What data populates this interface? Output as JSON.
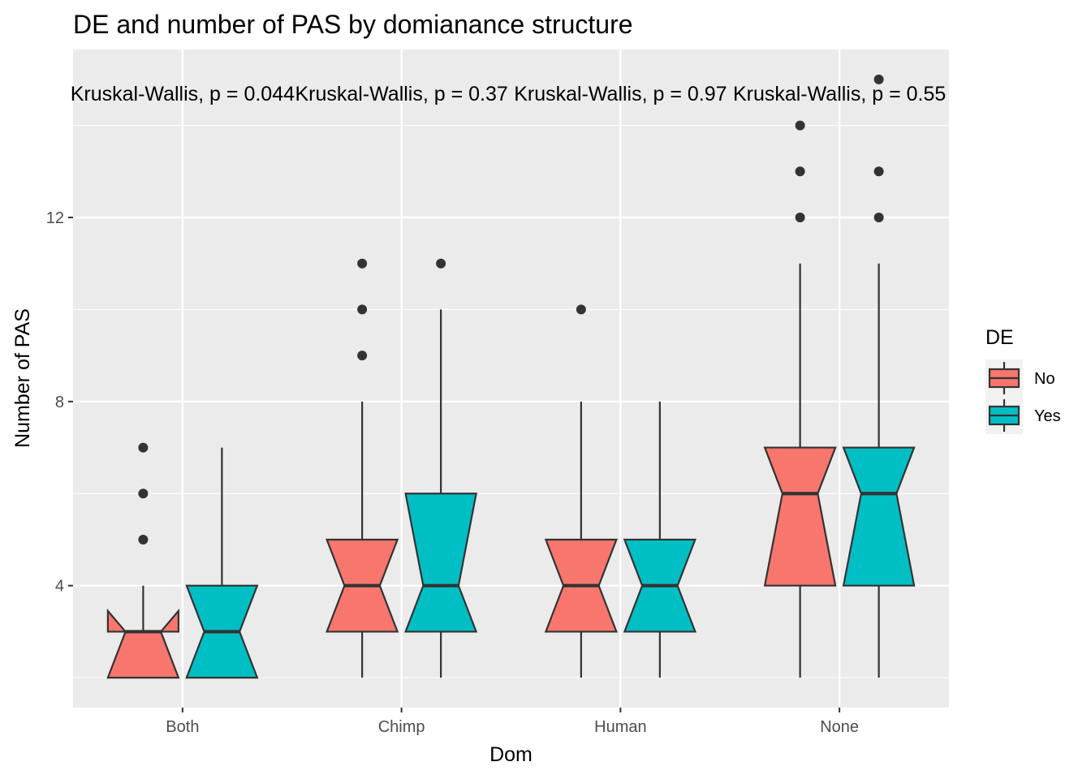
{
  "chart_data": {
    "type": "boxplot",
    "title": "DE and number of PAS by domianance structure",
    "xlabel": "Dom",
    "ylabel": "Number of PAS",
    "categories": [
      "Both",
      "Chimp",
      "Human",
      "None"
    ],
    "ylim": [
      1.35,
      15.65
    ],
    "yticks": [
      4,
      8,
      12
    ],
    "grid": true,
    "legend": {
      "title": "DE",
      "position": "right",
      "entries": [
        "No",
        "Yes"
      ]
    },
    "series": [
      {
        "name": "No",
        "color": "#F8766D",
        "boxes": [
          {
            "category": "Both",
            "lower": 2,
            "q1": 2,
            "median": 3,
            "q3": 3,
            "upper": 4,
            "outliers": [
              5,
              6,
              7
            ]
          },
          {
            "category": "Chimp",
            "lower": 2,
            "q1": 3,
            "median": 4,
            "q3": 5,
            "upper": 8,
            "outliers": [
              9,
              10,
              11
            ]
          },
          {
            "category": "Human",
            "lower": 2,
            "q1": 3,
            "median": 4,
            "q3": 5,
            "upper": 8,
            "outliers": [
              10
            ]
          },
          {
            "category": "None",
            "lower": 2,
            "q1": 4,
            "median": 6,
            "q3": 7,
            "upper": 11,
            "outliers": [
              12,
              13,
              14
            ]
          }
        ]
      },
      {
        "name": "Yes",
        "color": "#00BFC4",
        "boxes": [
          {
            "category": "Both",
            "lower": 2,
            "q1": 2,
            "median": 3,
            "q3": 4,
            "upper": 7,
            "outliers": []
          },
          {
            "category": "Chimp",
            "lower": 2,
            "q1": 3,
            "median": 4,
            "q3": 6,
            "upper": 10,
            "outliers": [
              11
            ]
          },
          {
            "category": "Human",
            "lower": 2,
            "q1": 3,
            "median": 4,
            "q3": 5,
            "upper": 8,
            "outliers": []
          },
          {
            "category": "None",
            "lower": 2,
            "q1": 4,
            "median": 6,
            "q3": 7,
            "upper": 11,
            "outliers": [
              12,
              13,
              15
            ]
          }
        ]
      }
    ],
    "annotations": [
      {
        "category": "Both",
        "text": "Kruskal-Wallis, p = 0.044"
      },
      {
        "category": "Chimp",
        "text": "Kruskal-Wallis, p = 0.37"
      },
      {
        "category": "Human",
        "text": "Kruskal-Wallis, p = 0.97"
      },
      {
        "category": "None",
        "text": "Kruskal-Wallis, p = 0.55"
      }
    ],
    "annotation_y": 14.7
  }
}
